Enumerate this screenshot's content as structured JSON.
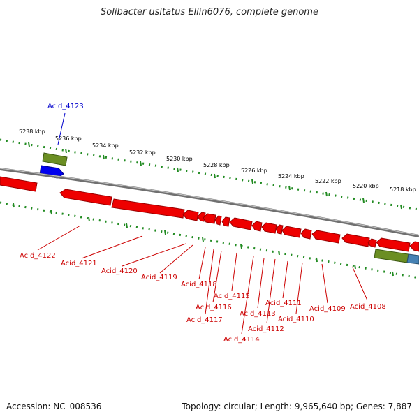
{
  "header": {
    "title": "Solibacter usitatus Ellin6076, complete genome"
  },
  "footer": {
    "accession": "Accession: NC_008536",
    "summary": "Topology: circular; Length: 9,965,640 bp; Genes: 7,887"
  },
  "ruler": {
    "tick_labels": [
      "5238 kbp",
      "5236 kbp",
      "5234 kbp",
      "5232 kbp",
      "5230 kbp",
      "5228 kbp",
      "5226 kbp",
      "5224 kbp",
      "5222 kbp",
      "5220 kbp",
      "5218 kbp"
    ]
  },
  "genes": {
    "forward_label": "Acid_4123",
    "reverse_labels": [
      "Acid_4122",
      "Acid_4121",
      "Acid_4120",
      "Acid_4119",
      "Acid_4118",
      "Acid_4117",
      "Acid_4116",
      "Acid_4115",
      "Acid_4114",
      "Acid_4113",
      "Acid_4112",
      "Acid_4111",
      "Acid_4110",
      "Acid_4109",
      "Acid_4108"
    ]
  },
  "colors": {
    "forward_gene": "#0000ee",
    "reverse_gene": "#ee0000",
    "rna_gene": "#6b8e23",
    "other_gene": "#4682b4",
    "tick": "#228b22",
    "backbone": "#808080",
    "forward_label": "#0000cc",
    "reverse_label": "#cc0000"
  }
}
